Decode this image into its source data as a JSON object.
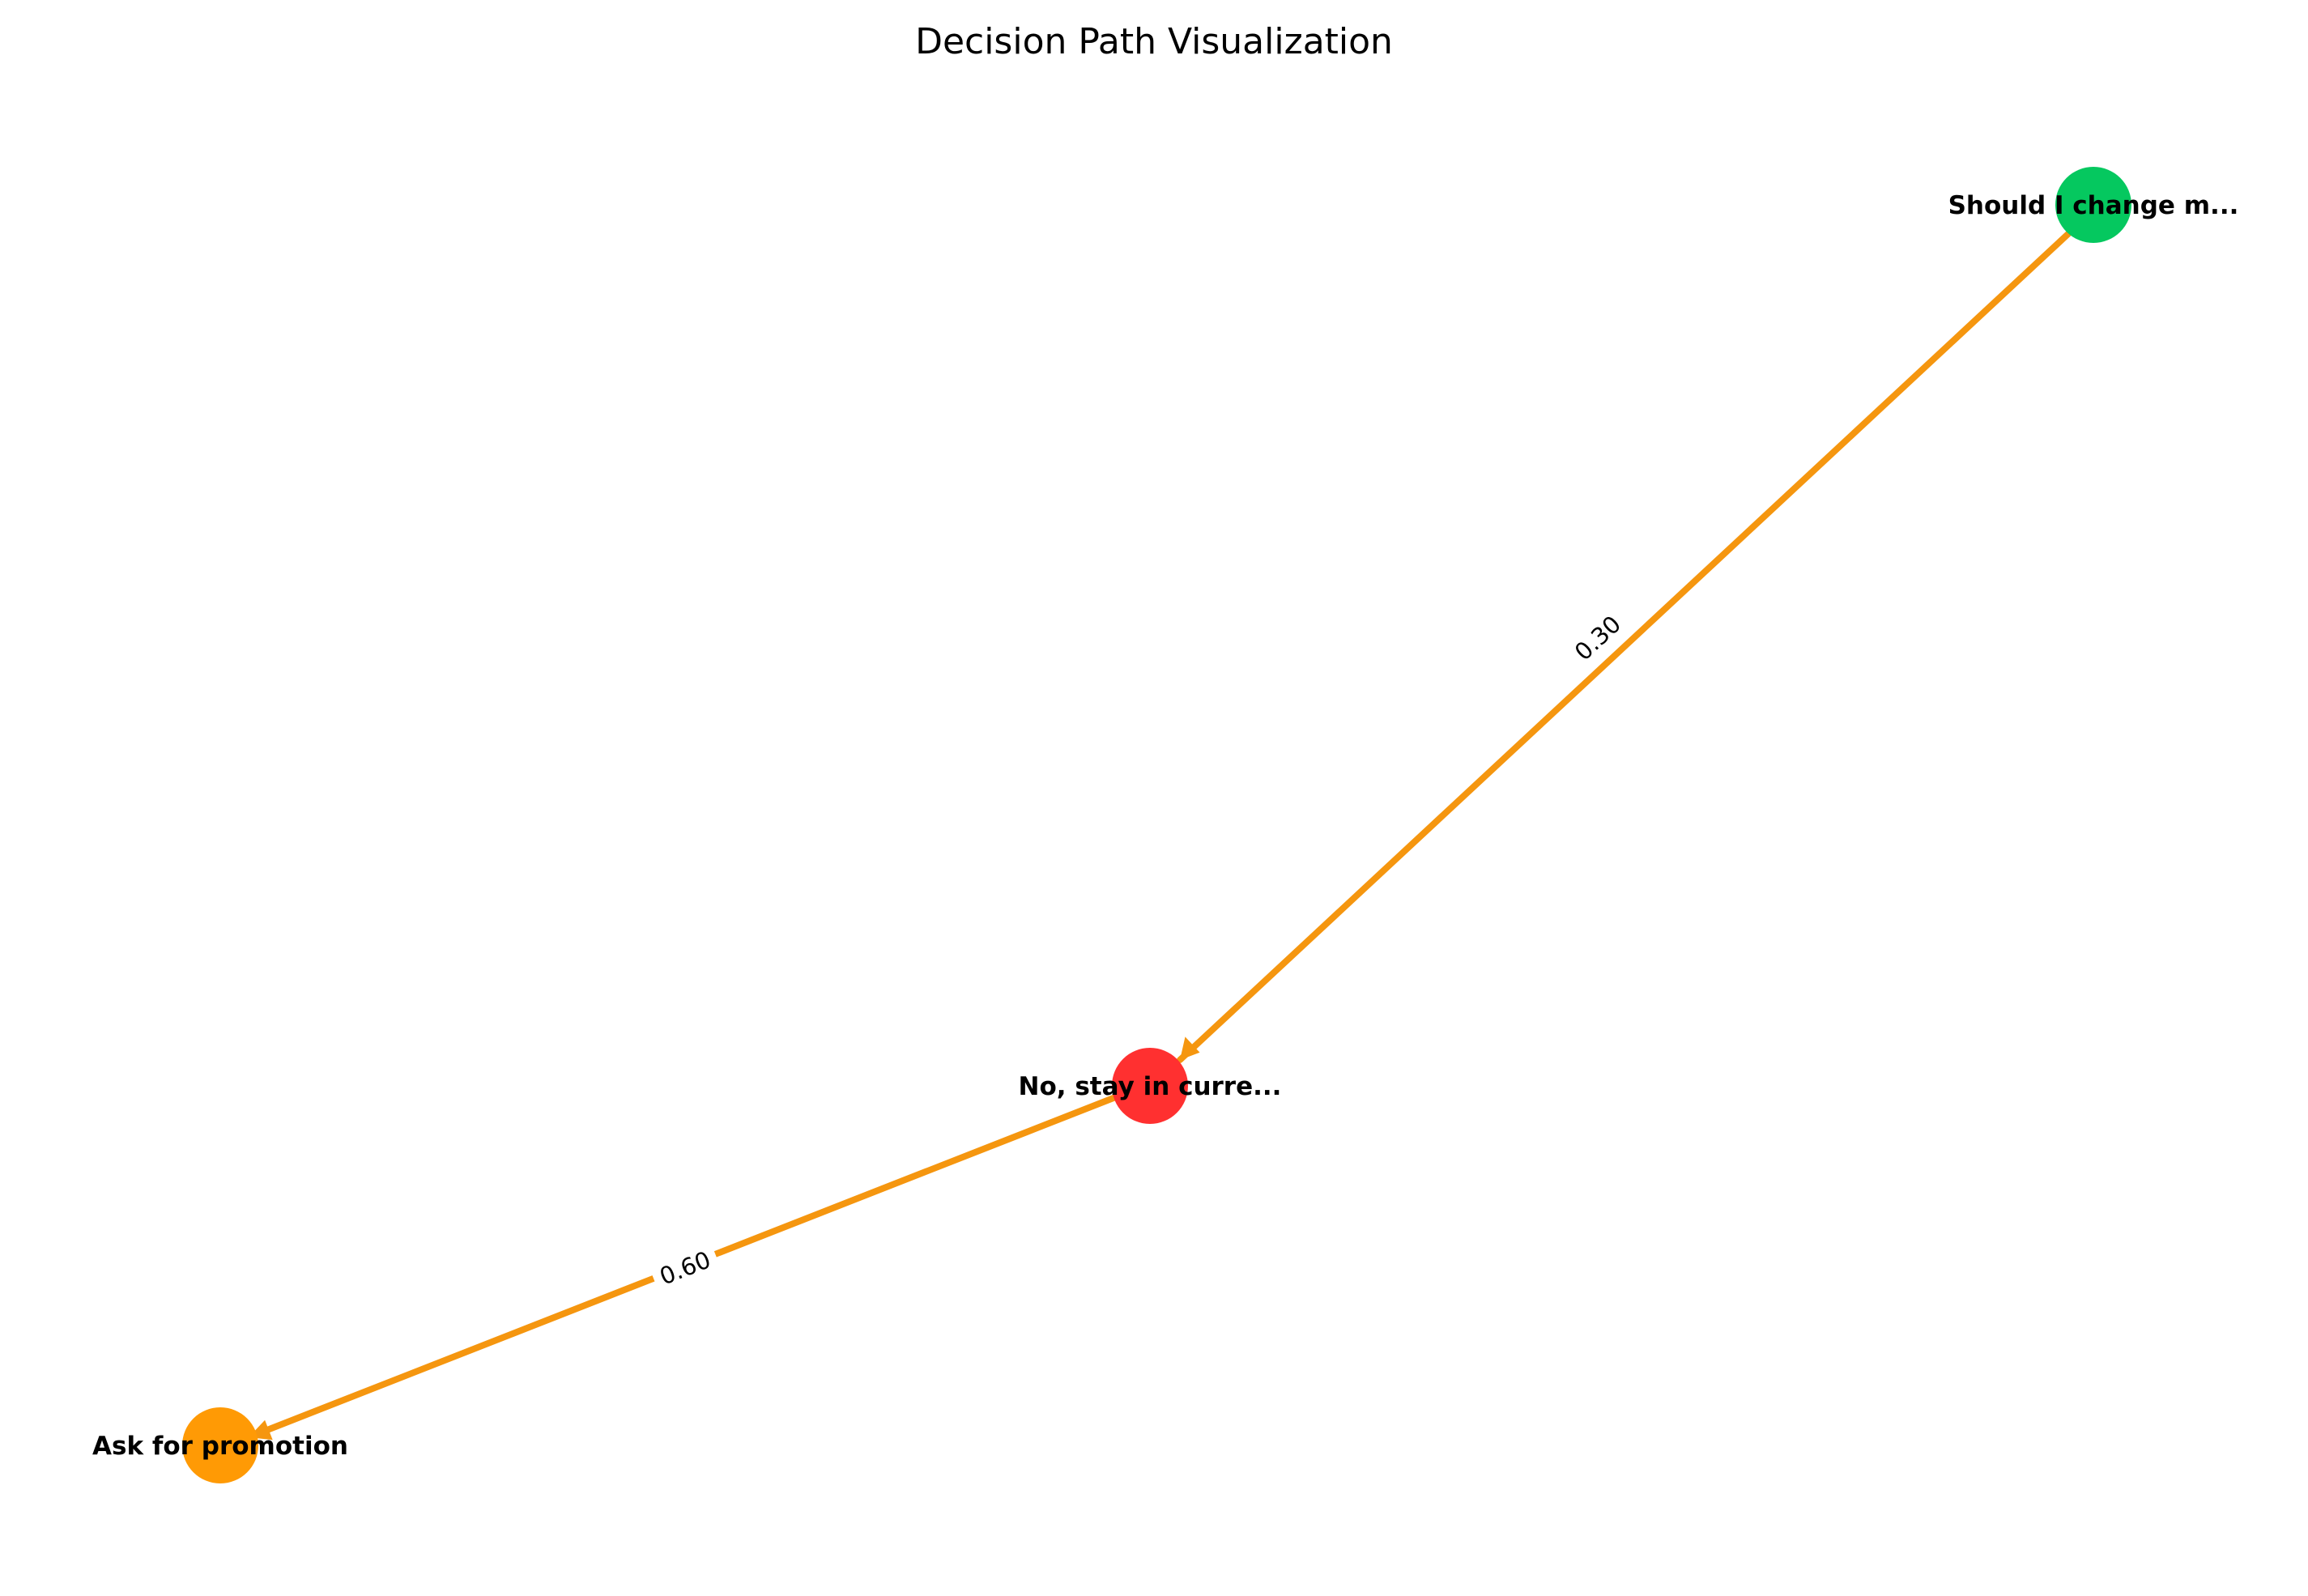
{
  "title": "Decision Path Visualization",
  "colors": {
    "edge": "#f5960f",
    "edge_label_bg": "#ffffff"
  },
  "nodes": [
    {
      "id": "root",
      "label": "Should I change m...",
      "color": "#05c85f"
    },
    {
      "id": "stay",
      "label": "No, stay in curre...",
      "color": "#ff3030"
    },
    {
      "id": "promo",
      "label": "Ask for promotion",
      "color": "#ff9a05"
    }
  ],
  "edges": [
    {
      "from": "root",
      "to": "stay",
      "weight": "0.30"
    },
    {
      "from": "stay",
      "to": "promo",
      "weight": "0.60"
    }
  ]
}
